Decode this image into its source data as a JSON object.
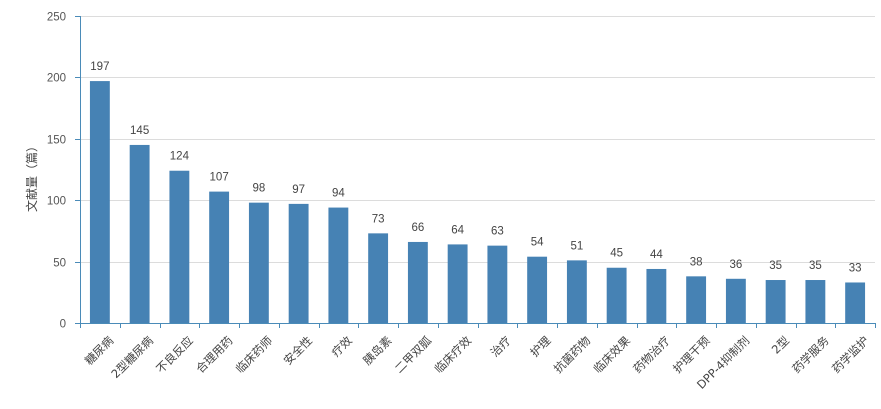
{
  "chart_data": {
    "type": "bar",
    "title": "",
    "xlabel": "",
    "ylabel": "文献量（篇）",
    "ylim": [
      0,
      250
    ],
    "yticks": [
      0,
      50,
      100,
      150,
      200,
      250
    ],
    "grid": true,
    "bar_color": "#4682b4",
    "categories": [
      "糖尿病",
      "2型糖尿病",
      "不良反应",
      "合理用药",
      "临床药师",
      "安全性",
      "疗效",
      "胰岛素",
      "二甲双胍",
      "临床疗效",
      "治疗",
      "护理",
      "抗菌药物",
      "临床效果",
      "药物治疗",
      "护理干预",
      "DPP-4抑制剂",
      "2型",
      "药学服务",
      "药学监护"
    ],
    "values": [
      197,
      145,
      124,
      107,
      98,
      97,
      94,
      73,
      66,
      64,
      63,
      54,
      51,
      45,
      44,
      38,
      36,
      35,
      35,
      33
    ]
  }
}
